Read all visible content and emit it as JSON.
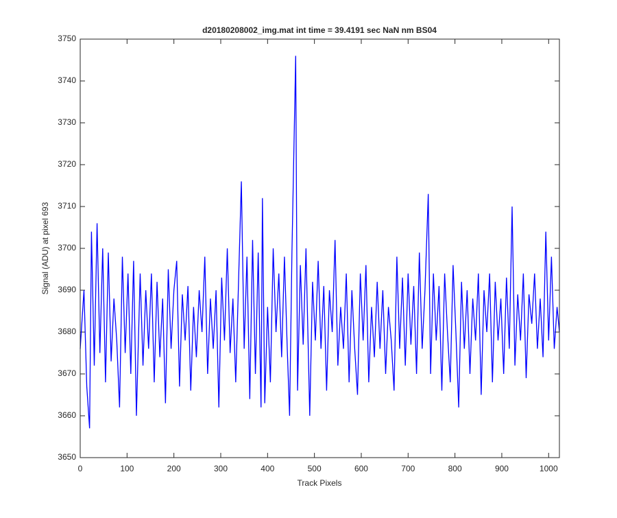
{
  "chart_data": {
    "type": "line",
    "title": "d20180208002_img.mat int time = 39.4191 sec  NaN nm BS04",
    "x_label": "Track Pixels",
    "y_label": "Signal (ADU) at pixel 693",
    "x": [
      0,
      8,
      14,
      20,
      24,
      30,
      36,
      42,
      48,
      54,
      60,
      66,
      72,
      78,
      84,
      90,
      96,
      102,
      108,
      114,
      120,
      128,
      134,
      140,
      146,
      152,
      158,
      164,
      170,
      176,
      182,
      188,
      194,
      200,
      206,
      212,
      218,
      224,
      230,
      236,
      242,
      248,
      254,
      260,
      266,
      272,
      278,
      284,
      290,
      296,
      302,
      308,
      314,
      320,
      326,
      332,
      338,
      344,
      350,
      356,
      362,
      368,
      374,
      380,
      386,
      389,
      394,
      400,
      406,
      412,
      418,
      424,
      430,
      436,
      442,
      447,
      452,
      460,
      464,
      470,
      476,
      482,
      490,
      496,
      502,
      508,
      514,
      520,
      526,
      532,
      538,
      544,
      550,
      556,
      562,
      568,
      574,
      580,
      586,
      592,
      598,
      604,
      610,
      616,
      622,
      628,
      634,
      640,
      646,
      652,
      658,
      664,
      670,
      676,
      682,
      688,
      694,
      700,
      706,
      712,
      718,
      724,
      730,
      736,
      743,
      748,
      754,
      760,
      766,
      772,
      778,
      784,
      790,
      796,
      802,
      808,
      814,
      820,
      826,
      832,
      838,
      844,
      850,
      856,
      862,
      868,
      874,
      880,
      886,
      892,
      898,
      904,
      910,
      916,
      922,
      928,
      934,
      940,
      946,
      952,
      958,
      964,
      970,
      976,
      982,
      988,
      994,
      1000,
      1006,
      1012,
      1018,
      1023
    ],
    "series": [
      {
        "color": "#0000ff",
        "values": [
          3676,
          3690,
          3667,
          3657,
          3704,
          3672,
          3706,
          3675,
          3700,
          3668,
          3699,
          3673,
          3688,
          3678,
          3662,
          3698,
          3675,
          3694,
          3670,
          3697,
          3660,
          3694,
          3672,
          3690,
          3676,
          3694,
          3668,
          3692,
          3674,
          3688,
          3663,
          3695,
          3676,
          3690,
          3697,
          3667,
          3689,
          3678,
          3691,
          3666,
          3686,
          3674,
          3690,
          3680,
          3698,
          3670,
          3688,
          3676,
          3690,
          3662,
          3693,
          3678,
          3700,
          3675,
          3688,
          3668,
          3692,
          3716,
          3676,
          3698,
          3664,
          3702,
          3670,
          3699,
          3662,
          3712,
          3663,
          3686,
          3668,
          3700,
          3680,
          3694,
          3674,
          3698,
          3676,
          3660,
          3699,
          3746,
          3666,
          3696,
          3677,
          3700,
          3660,
          3692,
          3678,
          3697,
          3676,
          3691,
          3666,
          3690,
          3680,
          3702,
          3672,
          3686,
          3676,
          3694,
          3668,
          3690,
          3676,
          3665,
          3694,
          3678,
          3696,
          3668,
          3686,
          3674,
          3692,
          3676,
          3690,
          3670,
          3686,
          3678,
          3666,
          3698,
          3676,
          3693,
          3672,
          3694,
          3677,
          3691,
          3670,
          3699,
          3676,
          3690,
          3713,
          3670,
          3694,
          3678,
          3691,
          3666,
          3694,
          3680,
          3668,
          3696,
          3680,
          3662,
          3692,
          3676,
          3690,
          3670,
          3688,
          3678,
          3694,
          3665,
          3690,
          3680,
          3694,
          3668,
          3692,
          3678,
          3688,
          3670,
          3693,
          3676,
          3710,
          3672,
          3689,
          3678,
          3694,
          3669,
          3689,
          3682,
          3694,
          3676,
          3688,
          3674,
          3704,
          3678,
          3698,
          3676,
          3686,
          3680
        ]
      }
    ],
    "xlim": [
      0,
      1023
    ],
    "ylim": [
      3650,
      3750
    ],
    "xticks": [
      0,
      100,
      200,
      300,
      400,
      500,
      600,
      700,
      800,
      900,
      1000
    ],
    "yticks": [
      3650,
      3660,
      3670,
      3680,
      3690,
      3700,
      3710,
      3720,
      3730,
      3740,
      3750
    ]
  }
}
